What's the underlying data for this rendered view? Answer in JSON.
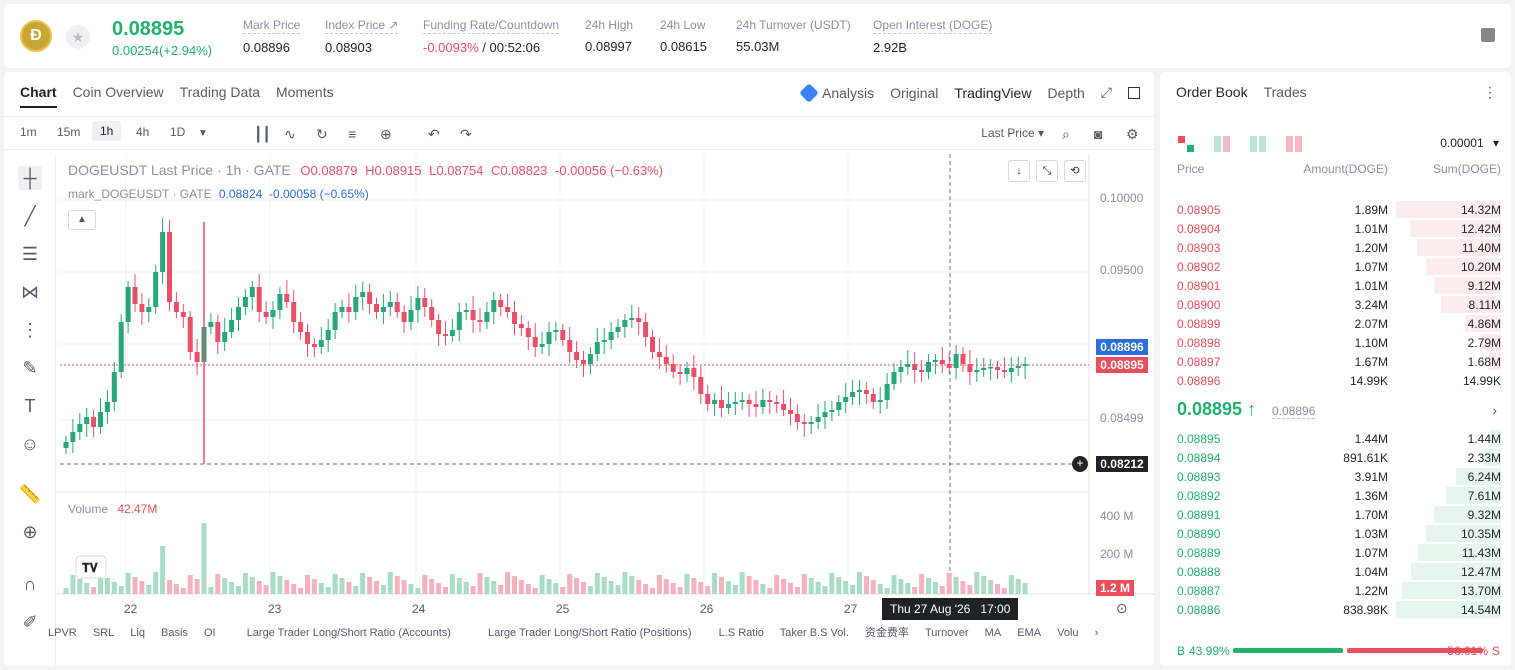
{
  "ticker": {
    "coin_logo_glyph": "Ð",
    "last_price": "0.08895",
    "change": "0.00254(+2.94%)",
    "stats": [
      {
        "label": "Mark Price",
        "value": "0.08896"
      },
      {
        "label": "Index Price ↗",
        "value": "0.08903"
      },
      {
        "label": "Funding Rate/Countdown",
        "value_neg": "-0.0093%",
        "value_rest": " / 00:52:06"
      },
      {
        "label": "24h High",
        "value": "0.08997"
      },
      {
        "label": "24h Low",
        "value": "0.08615"
      },
      {
        "label": "24h Turnover (USDT)",
        "value": "55.03M"
      },
      {
        "label": "Open Interest (DOGE)",
        "value": "2.92B"
      }
    ]
  },
  "chart_tabs": [
    "Chart",
    "Coin Overview",
    "Trading Data",
    "Moments"
  ],
  "view_tabs": [
    "Analysis",
    "Original",
    "TradingView",
    "Depth"
  ],
  "timeframes": [
    "1m",
    "15m",
    "1h",
    "4h",
    "1D"
  ],
  "last_price_select": "Last Price",
  "legend": {
    "symbol": "DOGEUSDT Last Price · 1h · GATE",
    "ohlc": {
      "o": "O0.08879",
      "h": "H0.08915",
      "l": "L0.08754",
      "c": "C0.08823",
      "chg": "-0.00056 (−0.63%)"
    },
    "mark_label": "mark_DOGEUSDT · GATE",
    "mark_values": "0.08824  -0.00058 (−0.65%)"
  },
  "volume_label": "Volume",
  "volume_value": "42.47M",
  "price_axis": [
    "0.10000",
    "0.09500",
    "0.08499"
  ],
  "volume_axis": [
    "400 M",
    "200 M"
  ],
  "price_tags": {
    "mark": "0.08896",
    "last": "0.08895",
    "cursor": "0.08212",
    "volume": "1.2 M"
  },
  "x_labels": [
    "22",
    "23",
    "24",
    "25",
    "26",
    "27"
  ],
  "time_tooltip": "Thu 27 Aug '26   17:00",
  "bottom_indicators": [
    "LPVR",
    "SRL",
    "Liq",
    "Basis",
    "OI",
    "Large Trader Long/Short Ratio (Accounts)",
    "Large Trader Long/Short Ratio (Positions)",
    "L.S Ratio",
    "Taker B.S Vol.",
    "资金费率",
    "Turnover",
    "MA",
    "EMA",
    "Volu"
  ],
  "colors": {
    "up": "#20b26c",
    "down": "#e84f5a",
    "up_candle": "#26a67a",
    "down_candle": "#e8506a"
  },
  "order_book": {
    "tabs": [
      "Order Book",
      "Trades"
    ],
    "precision": "0.00001",
    "headers": {
      "price": "Price",
      "amount": "Amount(DOGE)",
      "sum": "Sum(DOGE)"
    },
    "asks": [
      {
        "price": "0.08905",
        "amount": "1.89M",
        "sum": "14.32M",
        "depth": 1.0
      },
      {
        "price": "0.08904",
        "amount": "1.01M",
        "sum": "12.42M",
        "depth": 0.87
      },
      {
        "price": "0.08903",
        "amount": "1.20M",
        "sum": "11.40M",
        "depth": 0.8
      },
      {
        "price": "0.08902",
        "amount": "1.07M",
        "sum": "10.20M",
        "depth": 0.71
      },
      {
        "price": "0.08901",
        "amount": "1.01M",
        "sum": "9.12M",
        "depth": 0.64
      },
      {
        "price": "0.08900",
        "amount": "3.24M",
        "sum": "8.11M",
        "depth": 0.57
      },
      {
        "price": "0.08899",
        "amount": "2.07M",
        "sum": "4.86M",
        "depth": 0.34
      },
      {
        "price": "0.08898",
        "amount": "1.10M",
        "sum": "2.79M",
        "depth": 0.19
      },
      {
        "price": "0.08897",
        "amount": "1.67M",
        "sum": "1.68M",
        "depth": 0.12
      },
      {
        "price": "0.08896",
        "amount": "14.99K",
        "sum": "14.99K",
        "depth": 0.01
      }
    ],
    "mid_price": "0.08895 ↑",
    "mid_mark": "0.08896",
    "bids": [
      {
        "price": "0.08895",
        "amount": "1.44M",
        "sum": "1.44M",
        "depth": 0.1
      },
      {
        "price": "0.08894",
        "amount": "891.61K",
        "sum": "2.33M",
        "depth": 0.16
      },
      {
        "price": "0.08893",
        "amount": "3.91M",
        "sum": "6.24M",
        "depth": 0.43
      },
      {
        "price": "0.08892",
        "amount": "1.36M",
        "sum": "7.61M",
        "depth": 0.52
      },
      {
        "price": "0.08891",
        "amount": "1.70M",
        "sum": "9.32M",
        "depth": 0.64
      },
      {
        "price": "0.08890",
        "amount": "1.03M",
        "sum": "10.35M",
        "depth": 0.71
      },
      {
        "price": "0.08889",
        "amount": "1.07M",
        "sum": "11.43M",
        "depth": 0.79
      },
      {
        "price": "0.08888",
        "amount": "1.04M",
        "sum": "12.47M",
        "depth": 0.86
      },
      {
        "price": "0.08887",
        "amount": "1.22M",
        "sum": "13.70M",
        "depth": 0.94
      },
      {
        "price": "0.08886",
        "amount": "838.98K",
        "sum": "14.54M",
        "depth": 1.0
      }
    ],
    "buy_ratio": "43.99%",
    "sell_ratio": "56.01%",
    "buy_label": "B",
    "sell_label": "S",
    "buy_fraction": 0.4399
  }
}
